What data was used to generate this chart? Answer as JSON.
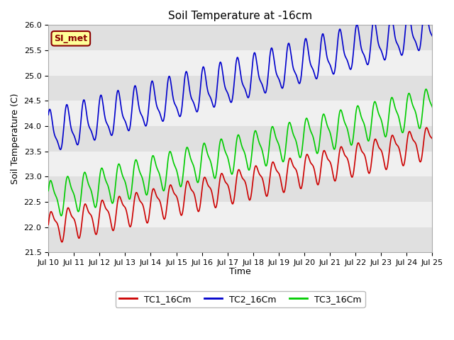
{
  "title": "Soil Temperature at -16cm",
  "ylabel": "Soil Temperature (C)",
  "xlabel": "Time",
  "ylim": [
    21.5,
    26.0
  ],
  "yticks": [
    21.5,
    22.0,
    22.5,
    23.0,
    23.5,
    24.0,
    24.5,
    25.0,
    25.5,
    26.0
  ],
  "xtick_labels": [
    "Jul 10",
    "Jul 11",
    "Jul 12",
    "Jul 13",
    "Jul 14",
    "Jul 15",
    "Jul 16",
    "Jul 17",
    "Jul 18",
    "Jul 19",
    "Jul 20",
    "Jul 21",
    "Jul 22",
    "Jul 23",
    "Jul 24",
    "Jul 25"
  ],
  "line_colors": [
    "#cc0000",
    "#0000cc",
    "#00cc00"
  ],
  "line_width": 1.2,
  "legend_labels": [
    "TC1_16Cm",
    "TC2_16Cm",
    "TC3_16Cm"
  ],
  "annotation_text": "SI_met",
  "annotation_bg": "#ffff99",
  "annotation_border": "#8b0000",
  "background_color": "#ffffff",
  "band_light": "#f0f0f0",
  "band_dark": "#e0e0e0",
  "title_fontsize": 11,
  "axis_fontsize": 9,
  "tick_fontsize": 8
}
